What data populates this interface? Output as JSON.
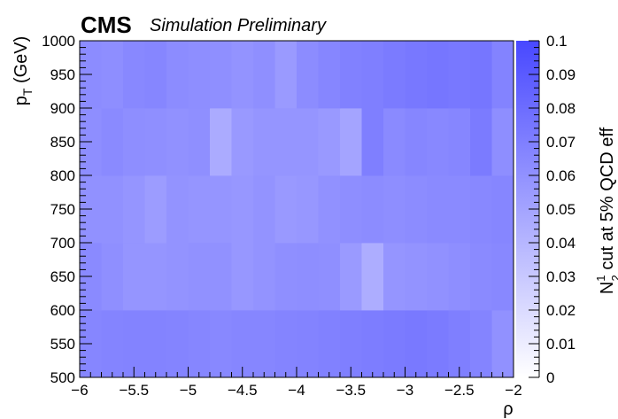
{
  "header": {
    "experiment": "CMS",
    "label": "Simulation Preliminary"
  },
  "chart_data": {
    "type": "heatmap",
    "xlabel": "ρ",
    "ylabel": "p",
    "ylabel_sub": "T",
    "ylabel_unit": " (GeV)",
    "zlabel_main": "N",
    "zlabel_sup": "1",
    "zlabel_sub": "2",
    "zlabel_rest": " cut at 5% QCD eff",
    "xlim": [
      -6,
      -2
    ],
    "ylim": [
      500,
      1000
    ],
    "zlim": [
      0,
      0.1
    ],
    "x_ticks": [
      -6,
      -5.5,
      -5,
      -4.5,
      -4,
      -3.5,
      -3,
      -2.5,
      -2
    ],
    "x_tick_labels": [
      "−6",
      "−5.5",
      "−5",
      "−4.5",
      "−4",
      "−3.5",
      "−3",
      "−2.5",
      "−2"
    ],
    "y_ticks": [
      500,
      550,
      600,
      650,
      700,
      750,
      800,
      850,
      900,
      950,
      1000
    ],
    "y_tick_labels": [
      "500",
      "550",
      "600",
      "650",
      "700",
      "750",
      "800",
      "850",
      "900",
      "950",
      "1000"
    ],
    "z_ticks": [
      0,
      0.01,
      0.02,
      0.03,
      0.04,
      0.05,
      0.06,
      0.07,
      0.08,
      0.09,
      0.1
    ],
    "z_tick_labels": [
      "0",
      "0.01",
      "0.02",
      "0.03",
      "0.04",
      "0.05",
      "0.06",
      "0.07",
      "0.08",
      "0.09",
      "0.1"
    ],
    "x_bin_edges": [
      -6,
      -5.8,
      -5.6,
      -5.4,
      -5.2,
      -5,
      -4.8,
      -4.6,
      -4.4,
      -4.2,
      -4,
      -3.8,
      -3.6,
      -3.4,
      -3.2,
      -3,
      -2.8,
      -2.6,
      -2.4,
      -2.2,
      -2
    ],
    "y_bin_edges": [
      500,
      600,
      700,
      800,
      900,
      1000
    ],
    "values": [
      [
        0.066,
        0.067,
        0.068,
        0.068,
        0.067,
        0.066,
        0.065,
        0.066,
        0.066,
        0.067,
        0.068,
        0.069,
        0.07,
        0.071,
        0.072,
        0.073,
        0.072,
        0.07,
        0.067,
        0.06
      ],
      [
        0.064,
        0.061,
        0.058,
        0.058,
        0.059,
        0.06,
        0.06,
        0.057,
        0.059,
        0.061,
        0.062,
        0.061,
        0.055,
        0.045,
        0.058,
        0.059,
        0.06,
        0.062,
        0.064,
        0.065
      ],
      [
        0.06,
        0.06,
        0.058,
        0.054,
        0.059,
        0.058,
        0.058,
        0.057,
        0.059,
        0.056,
        0.057,
        0.06,
        0.062,
        0.063,
        0.062,
        0.063,
        0.064,
        0.064,
        0.065,
        0.066
      ],
      [
        0.062,
        0.064,
        0.062,
        0.061,
        0.06,
        0.061,
        0.046,
        0.056,
        0.058,
        0.058,
        0.058,
        0.056,
        0.05,
        0.07,
        0.064,
        0.066,
        0.065,
        0.066,
        0.072,
        0.062
      ],
      [
        0.063,
        0.062,
        0.065,
        0.066,
        0.063,
        0.062,
        0.061,
        0.059,
        0.061,
        0.055,
        0.063,
        0.066,
        0.069,
        0.07,
        0.072,
        0.074,
        0.075,
        0.074,
        0.075,
        0.068
      ]
    ]
  }
}
